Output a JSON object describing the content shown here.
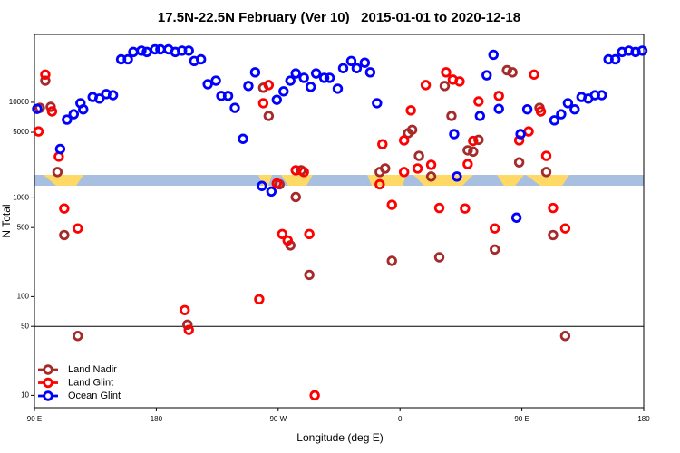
{
  "chart_data": {
    "type": "scatter",
    "title": "17.5N-22.5N February (Ver 10)   2015-01-01 to 2020-12-18",
    "x_label": "Longitude (deg E)",
    "y_label": "N Total",
    "log_y": true,
    "legend": "lower left",
    "hline": 50,
    "xlim": [
      90,
      540
    ],
    "xticks": [
      {
        "value": 90,
        "label": "90 E"
      },
      {
        "value": 180,
        "label": "180"
      },
      {
        "value": 270,
        "label": "90 W"
      },
      {
        "value": 360,
        "label": "0"
      },
      {
        "value": 450,
        "label": "90 E"
      },
      {
        "value": 540,
        "label": "180"
      }
    ],
    "ylim": [
      7.5,
      48000
    ],
    "yticks": [
      10,
      50,
      100,
      500,
      1000,
      5000,
      10000
    ],
    "series": [
      {
        "name": "Land Nadir",
        "color": "#a52a2a",
        "x": [
          94,
          98,
          102,
          107,
          112,
          122,
          203,
          259,
          263,
          271,
          279,
          283,
          287,
          293,
          345,
          349,
          354,
          366,
          369,
          374,
          383,
          389,
          393,
          398,
          410,
          414,
          418,
          430,
          439,
          443,
          448,
          463,
          468,
          473,
          482
        ],
        "values": [
          8800,
          16500,
          9000,
          2000,
          420,
          40,
          52,
          14000,
          7300,
          1370,
          330,
          1020,
          2080,
          166,
          2000,
          2170,
          230,
          4900,
          5300,
          2900,
          1800,
          250,
          14600,
          7300,
          3300,
          3200,
          4200,
          300,
          21000,
          20000,
          2500,
          8800,
          2000,
          420,
          40
        ]
      },
      {
        "name": "Land Glint",
        "color": "#ff0000",
        "x": [
          93,
          98,
          103,
          108,
          112,
          122,
          201,
          204,
          256,
          259,
          263,
          269,
          273,
          277,
          283,
          289,
          293,
          297,
          345,
          347,
          354,
          363,
          363,
          368,
          373,
          379,
          383,
          389,
          394,
          399,
          404,
          408,
          410,
          414,
          418,
          430,
          433,
          448,
          455,
          459,
          464,
          468,
          473,
          482
        ],
        "values": [
          5100,
          19000,
          8100,
          2850,
          780,
          490,
          73,
          46,
          94,
          9800,
          14900,
          1400,
          430,
          370,
          2080,
          2000,
          430,
          10,
          1370,
          3800,
          850,
          2000,
          4150,
          8300,
          2170,
          14900,
          2360,
          790,
          20000,
          16900,
          16200,
          780,
          2400,
          4100,
          10200,
          490,
          11600,
          4150,
          5100,
          19000,
          8100,
          2900,
          790,
          490
        ]
      },
      {
        "name": "Ocean Glint",
        "color": "#0000ff",
        "x": [
          92,
          109,
          114,
          119,
          124,
          126,
          133,
          138,
          143,
          148,
          154,
          159,
          163,
          169,
          173,
          179,
          183,
          189,
          194,
          199,
          204,
          208,
          213,
          218,
          224,
          228,
          233,
          238,
          244,
          248,
          253,
          258,
          265,
          269,
          274,
          279,
          283,
          289,
          294,
          298,
          304,
          308,
          314,
          318,
          324,
          328,
          334,
          338,
          343,
          400,
          402,
          419,
          424,
          429,
          433,
          446,
          449,
          454,
          474,
          479,
          484,
          489,
          494,
          499,
          504,
          509,
          514,
          519,
          524,
          529,
          534,
          539
        ],
        "values": [
          8600,
          3400,
          6700,
          7600,
          9800,
          8500,
          11300,
          10900,
          12100,
          11800,
          27000,
          27000,
          32000,
          33000,
          32000,
          34000,
          34000,
          34000,
          32000,
          33000,
          33000,
          26000,
          27000,
          15200,
          16500,
          11600,
          11600,
          8800,
          4300,
          14600,
          20000,
          1320,
          1160,
          10600,
          12900,
          16500,
          19500,
          17600,
          14300,
          19500,
          17600,
          17600,
          13700,
          22000,
          26000,
          22000,
          25000,
          20000,
          9800,
          4800,
          1800,
          7300,
          18700,
          30000,
          8600,
          630,
          4800,
          8500,
          6600,
          7600,
          9800,
          8500,
          11300,
          10900,
          11800,
          11800,
          27000,
          27000,
          32000,
          33000,
          32000,
          33000
        ]
      }
    ]
  }
}
